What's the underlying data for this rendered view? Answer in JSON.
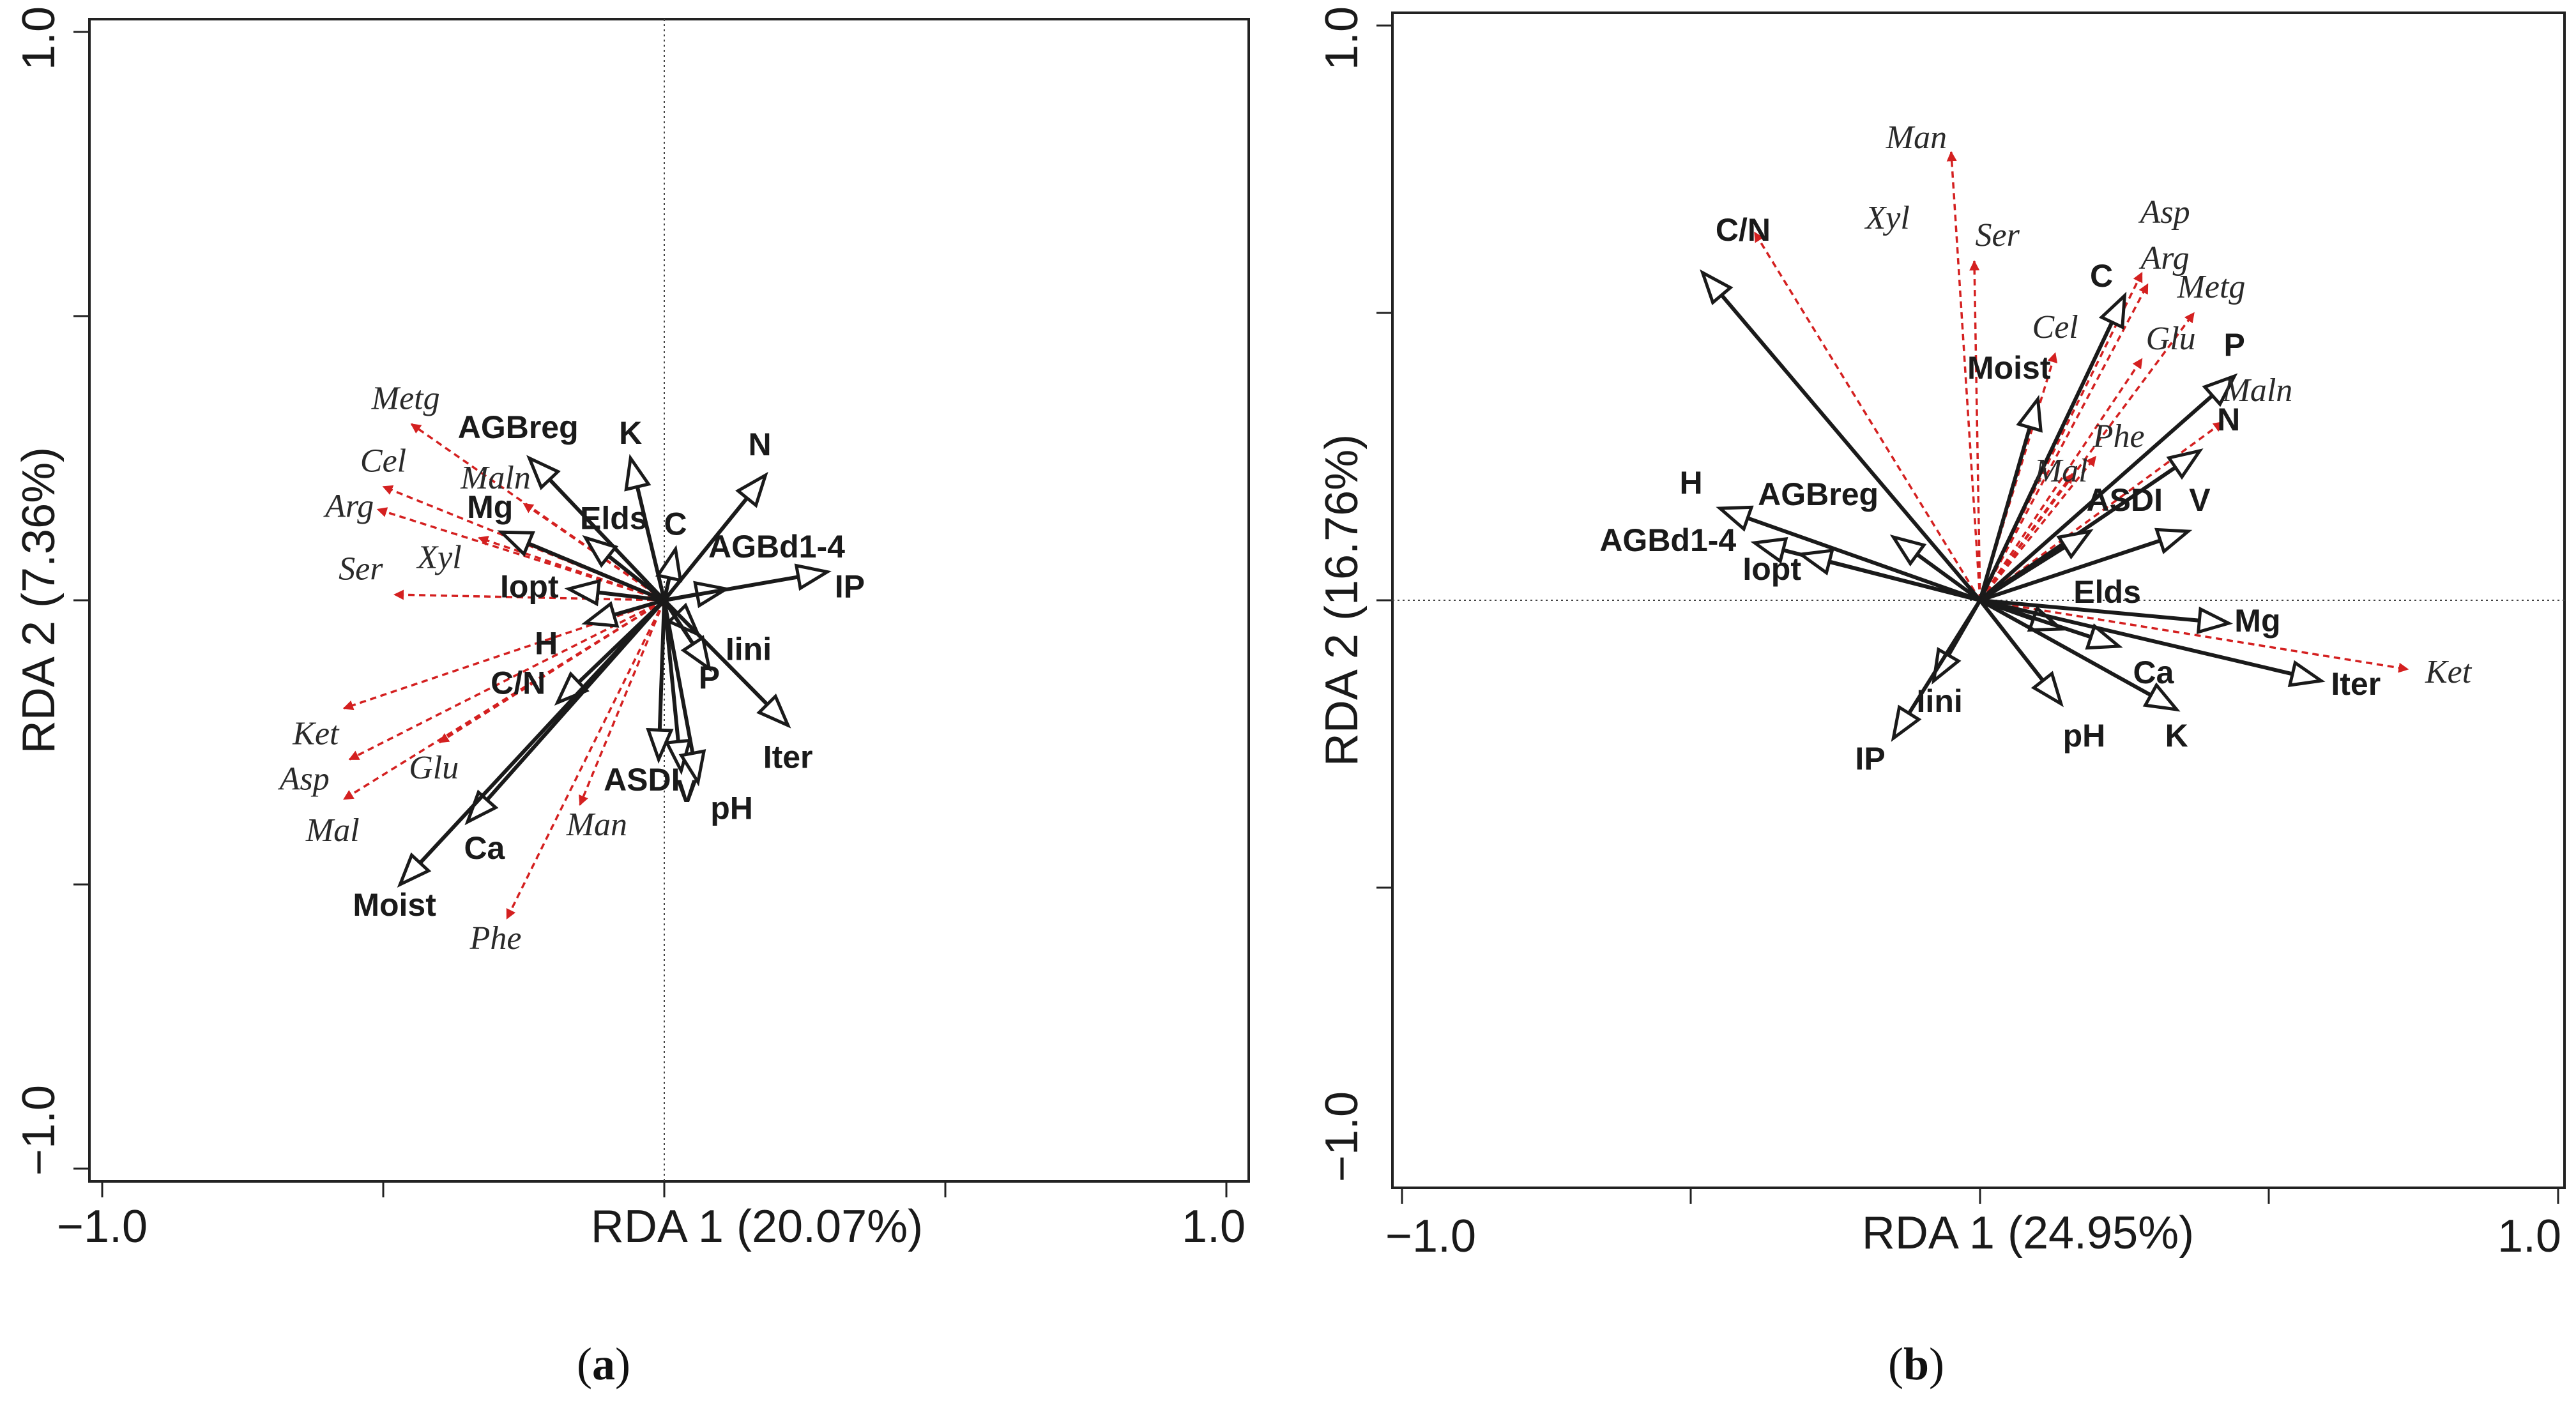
{
  "chart_data": [
    {
      "type": "scatter",
      "subtype": "rda-biplot",
      "panel_label": "a",
      "xlabel": "RDA 1 (20.07%)",
      "ylabel": "RDA 2 (7.36%)",
      "xlim": [
        -1.0,
        1.0
      ],
      "ylim": [
        -1.0,
        1.0
      ],
      "x_tick_labels": [
        "−1.0",
        "1.0"
      ],
      "y_tick_labels": [
        "−1.0",
        "1.0"
      ],
      "colors": {
        "environment": "#1a1a1a",
        "species": "#d42020"
      },
      "environment_vectors": [
        {
          "name": "AGBreg",
          "x": -0.24,
          "y": 0.25,
          "lx": -0.26,
          "ly": 0.3
        },
        {
          "name": "K",
          "x": -0.06,
          "y": 0.25,
          "lx": -0.06,
          "ly": 0.29
        },
        {
          "name": "N",
          "x": 0.18,
          "y": 0.22,
          "lx": 0.17,
          "ly": 0.27
        },
        {
          "name": "C",
          "x": 0.02,
          "y": 0.09,
          "lx": 0.02,
          "ly": 0.13
        },
        {
          "name": "Elds",
          "x": -0.14,
          "y": 0.11,
          "lx": -0.09,
          "ly": 0.14
        },
        {
          "name": "Mg",
          "x": -0.29,
          "y": 0.12,
          "lx": -0.31,
          "ly": 0.16
        },
        {
          "name": "Iopt",
          "x": -0.17,
          "y": 0.02,
          "lx": -0.24,
          "ly": 0.02
        },
        {
          "name": "AGBd1-4",
          "x": 0.11,
          "y": 0.02,
          "lx": 0.2,
          "ly": 0.09
        },
        {
          "name": "IP",
          "x": 0.29,
          "y": 0.05,
          "lx": 0.33,
          "ly": 0.02
        },
        {
          "name": "H",
          "x": -0.14,
          "y": -0.04,
          "lx": -0.21,
          "ly": -0.08
        },
        {
          "name": "C/N",
          "x": -0.19,
          "y": -0.18,
          "lx": -0.26,
          "ly": -0.15
        },
        {
          "name": "Iini",
          "x": 0.06,
          "y": -0.06,
          "lx": 0.15,
          "ly": -0.09
        },
        {
          "name": "P",
          "x": 0.08,
          "y": -0.12,
          "lx": 0.08,
          "ly": -0.14
        },
        {
          "name": "Iter",
          "x": 0.22,
          "y": -0.22,
          "lx": 0.22,
          "ly": -0.28
        },
        {
          "name": "ASDI",
          "x": -0.01,
          "y": -0.28,
          "lx": -0.04,
          "ly": -0.32
        },
        {
          "name": "V",
          "x": 0.03,
          "y": -0.3,
          "lx": 0.04,
          "ly": -0.34
        },
        {
          "name": "pH",
          "x": 0.06,
          "y": -0.32,
          "lx": 0.12,
          "ly": -0.37
        },
        {
          "name": "Ca",
          "x": -0.35,
          "y": -0.39,
          "lx": -0.32,
          "ly": -0.44
        },
        {
          "name": "Moist",
          "x": -0.47,
          "y": -0.5,
          "lx": -0.48,
          "ly": -0.54
        }
      ],
      "species_vectors": [
        {
          "name": "Metg",
          "x": -0.45,
          "y": 0.31,
          "lx": -0.46,
          "ly": 0.35
        },
        {
          "name": "Cel",
          "x": -0.5,
          "y": 0.2,
          "lx": -0.5,
          "ly": 0.24
        },
        {
          "name": "Arg",
          "x": -0.51,
          "y": 0.16,
          "lx": -0.56,
          "ly": 0.16
        },
        {
          "name": "Maln",
          "x": -0.25,
          "y": 0.17,
          "lx": -0.3,
          "ly": 0.21
        },
        {
          "name": "Xyl",
          "x": -0.33,
          "y": 0.11,
          "lx": -0.4,
          "ly": 0.07
        },
        {
          "name": "Ser",
          "x": -0.48,
          "y": 0.01,
          "lx": -0.54,
          "ly": 0.05
        },
        {
          "name": "Ket",
          "x": -0.57,
          "y": -0.19,
          "lx": -0.62,
          "ly": -0.24
        },
        {
          "name": "Asp",
          "x": -0.56,
          "y": -0.28,
          "lx": -0.64,
          "ly": -0.32
        },
        {
          "name": "Glu",
          "x": -0.4,
          "y": -0.25,
          "lx": -0.41,
          "ly": -0.3
        },
        {
          "name": "Mal",
          "x": -0.57,
          "y": -0.35,
          "lx": -0.59,
          "ly": -0.41
        },
        {
          "name": "Man",
          "x": -0.15,
          "y": -0.36,
          "lx": -0.12,
          "ly": -0.4
        },
        {
          "name": "Phe",
          "x": -0.28,
          "y": -0.56,
          "lx": -0.3,
          "ly": -0.6
        }
      ]
    },
    {
      "type": "scatter",
      "subtype": "rda-biplot",
      "panel_label": "b",
      "xlabel": "RDA 1 (24.95%)",
      "ylabel": "RDA 2 (16.76%)",
      "xlim": [
        -1.0,
        1.0
      ],
      "ylim": [
        -1.0,
        1.0
      ],
      "x_tick_labels": [
        "−1.0",
        "1.0"
      ],
      "y_tick_labels": [
        "−1.0",
        "1.0"
      ],
      "colors": {
        "environment": "#1a1a1a",
        "species": "#d42020"
      },
      "environment_vectors": [
        {
          "name": "C/N",
          "x": -0.48,
          "y": 0.57,
          "lx": -0.41,
          "ly": 0.64
        },
        {
          "name": "C",
          "x": 0.25,
          "y": 0.53,
          "lx": 0.21,
          "ly": 0.56
        },
        {
          "name": "Moist",
          "x": 0.1,
          "y": 0.35,
          "lx": 0.05,
          "ly": 0.4
        },
        {
          "name": "P",
          "x": 0.44,
          "y": 0.39,
          "lx": 0.44,
          "ly": 0.44
        },
        {
          "name": "N",
          "x": 0.38,
          "y": 0.26,
          "lx": 0.43,
          "ly": 0.31
        },
        {
          "name": "ASDI",
          "x": 0.19,
          "y": 0.12,
          "lx": 0.25,
          "ly": 0.17
        },
        {
          "name": "V",
          "x": 0.36,
          "y": 0.12,
          "lx": 0.38,
          "ly": 0.17
        },
        {
          "name": "H",
          "x": -0.45,
          "y": 0.16,
          "lx": -0.5,
          "ly": 0.2
        },
        {
          "name": "AGBreg",
          "x": -0.15,
          "y": 0.11,
          "lx": -0.28,
          "ly": 0.18
        },
        {
          "name": "AGBd1-4",
          "x": -0.39,
          "y": 0.1,
          "lx": -0.54,
          "ly": 0.1
        },
        {
          "name": "Iopt",
          "x": -0.31,
          "y": 0.08,
          "lx": -0.36,
          "ly": 0.05
        },
        {
          "name": "Elds",
          "x": 0.14,
          "y": -0.05,
          "lx": 0.22,
          "ly": 0.01
        },
        {
          "name": "Mg",
          "x": 0.43,
          "y": -0.04,
          "lx": 0.48,
          "ly": -0.04
        },
        {
          "name": "Ca",
          "x": 0.24,
          "y": -0.08,
          "lx": 0.3,
          "ly": -0.13
        },
        {
          "name": "K",
          "x": 0.34,
          "y": -0.19,
          "lx": 0.34,
          "ly": -0.24
        },
        {
          "name": "Iter",
          "x": 0.59,
          "y": -0.14,
          "lx": 0.65,
          "ly": -0.15
        },
        {
          "name": "pH",
          "x": 0.14,
          "y": -0.18,
          "lx": 0.18,
          "ly": -0.24
        },
        {
          "name": "Iini",
          "x": -0.08,
          "y": -0.14,
          "lx": -0.07,
          "ly": -0.18
        },
        {
          "name": "IP",
          "x": -0.15,
          "y": -0.24,
          "lx": -0.19,
          "ly": -0.28
        }
      ],
      "species_vectors": [
        {
          "name": "Man",
          "x": -0.05,
          "y": 0.78,
          "lx": -0.11,
          "ly": 0.8
        },
        {
          "name": "Xyl",
          "x": -0.39,
          "y": 0.64,
          "lx": -0.16,
          "ly": 0.66
        },
        {
          "name": "Ser",
          "x": -0.01,
          "y": 0.59,
          "lx": 0.03,
          "ly": 0.63
        },
        {
          "name": "Asp",
          "x": 0.28,
          "y": 0.57,
          "lx": 0.32,
          "ly": 0.67
        },
        {
          "name": "Arg",
          "x": 0.29,
          "y": 0.55,
          "lx": 0.32,
          "ly": 0.59
        },
        {
          "name": "Metg",
          "x": 0.37,
          "y": 0.5,
          "lx": 0.4,
          "ly": 0.54
        },
        {
          "name": "Cel",
          "x": 0.13,
          "y": 0.43,
          "lx": 0.13,
          "ly": 0.47
        },
        {
          "name": "Glu",
          "x": 0.28,
          "y": 0.42,
          "lx": 0.33,
          "ly": 0.45
        },
        {
          "name": "Maln",
          "x": 0.42,
          "y": 0.31,
          "lx": 0.48,
          "ly": 0.36
        },
        {
          "name": "Phe",
          "x": 0.2,
          "y": 0.25,
          "lx": 0.24,
          "ly": 0.28
        },
        {
          "name": "Mal",
          "x": 0.16,
          "y": 0.22,
          "lx": 0.14,
          "ly": 0.22
        },
        {
          "name": "Ket",
          "x": 0.74,
          "y": -0.12,
          "lx": 0.81,
          "ly": -0.13
        }
      ]
    }
  ]
}
